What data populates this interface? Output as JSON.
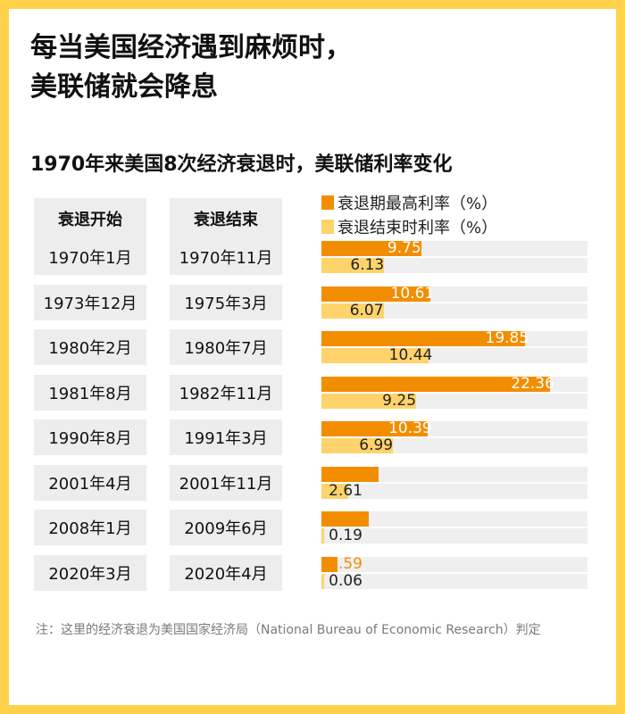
{
  "headline": [
    "每当美国经济遇到麻烦时，",
    "美联储就会降息"
  ],
  "chart_data": {
    "type": "bar",
    "title": "1970年来美国8次经济衰退时，美联储利率变化",
    "columns": [
      "衰退开始",
      "衰退结束"
    ],
    "start": [
      "1970年1月",
      "1973年12月",
      "1980年2月",
      "1981年8月",
      "1990年8月",
      "2001年4月",
      "2008年1月",
      "2020年3月"
    ],
    "end": [
      "1970年11月",
      "1975年3月",
      "1980年7月",
      "1982年11月",
      "1991年3月",
      "2001年11月",
      "2009年6月",
      "2020年4月"
    ],
    "series": [
      {
        "name": "衰退期最高利率（%）",
        "color": "#f38d00",
        "label_color": "#f38d00",
        "values": [
          9.75,
          10.61,
          19.85,
          22.36,
          10.39,
          5.59,
          4.66,
          1.59
        ]
      },
      {
        "name": "衰退结束时利率（%）",
        "color": "#ffd36b",
        "label_color": "#222222",
        "values": [
          6.13,
          6.07,
          10.44,
          9.25,
          6.99,
          2.61,
          0.19,
          0.06
        ]
      }
    ],
    "xlim": [
      0,
      26
    ],
    "grid": false,
    "legend": "top-right"
  },
  "note": "注：这里的经济衰退为美国国家经济局（National Bureau of Economic Research）判定"
}
